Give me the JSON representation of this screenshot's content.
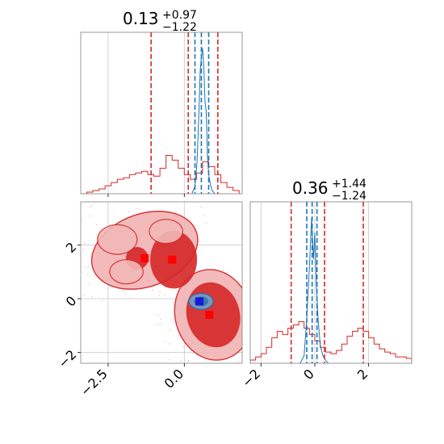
{
  "colors": {
    "red": "#d62728",
    "red_mid": "#e77778",
    "red_light": "#f2b7b7",
    "blue": "#1f77b4",
    "blue_light": "#6aa7d0",
    "marker_red": "#ff0000",
    "marker_blue": "#1818d6",
    "grid": "#c8c8c8"
  },
  "chart_data": [
    {
      "type": "line",
      "panel": "top-left",
      "title_main": "0.13",
      "title_sup": "+0.97",
      "title_sub": "−1.22",
      "xlim": [
        -3.4,
        1.9
      ],
      "grid": true,
      "series": [
        {
          "color": "#d62728",
          "bins": [
            -3.4,
            -3.2,
            -3.0,
            -2.8,
            -2.6,
            -2.4,
            -2.2,
            -2.0,
            -1.8,
            -1.6,
            -1.4,
            -1.2,
            -1.0,
            -0.8,
            -0.6,
            -0.4,
            -0.2,
            0.0,
            0.2,
            0.4,
            0.6,
            0.8,
            1.0,
            1.2,
            1.4,
            1.6,
            1.8
          ],
          "heights": [
            0.0,
            0.01,
            0.02,
            0.03,
            0.05,
            0.07,
            0.09,
            0.1,
            0.12,
            0.13,
            0.14,
            0.12,
            0.11,
            0.16,
            0.24,
            0.21,
            0.16,
            0.12,
            0.09,
            0.13,
            0.2,
            0.17,
            0.12,
            0.07,
            0.04,
            0.02
          ]
        },
        {
          "color": "#1f77b4",
          "x": [
            0.25,
            0.35,
            0.42,
            0.48,
            0.52,
            0.56,
            0.6,
            0.64,
            0.68,
            0.72,
            0.76,
            0.8,
            0.86,
            0.92,
            1.0
          ],
          "y": [
            0.0,
            0.05,
            0.22,
            0.55,
            0.82,
            0.92,
            0.98,
            0.85,
            0.62,
            0.55,
            0.25,
            0.13,
            0.06,
            0.02,
            0.0
          ]
        }
      ],
      "vlines": [
        {
          "x": -1.09,
          "color": "#d62728"
        },
        {
          "x": 0.13,
          "color": "#d62728"
        },
        {
          "x": 1.1,
          "color": "#d62728"
        },
        {
          "x": 0.35,
          "color": "#1f77b4"
        },
        {
          "x": 0.56,
          "color": "#1f77b4"
        },
        {
          "x": 0.8,
          "color": "#1f77b4"
        }
      ]
    },
    {
      "type": "heatmap",
      "panel": "bottom-left",
      "xlim": [
        -3.4,
        1.9
      ],
      "ylim": [
        -2.4,
        3.6
      ],
      "xticks": [
        -2.5,
        0.0
      ],
      "xticklabels": [
        "−2.5",
        "0.0"
      ],
      "yticks": [
        -2,
        0,
        2
      ],
      "yticklabels": [
        "−2",
        "0",
        "2"
      ],
      "grid": true,
      "red_contours": [
        {
          "level": "outer",
          "cx": -1.3,
          "cy": 1.8,
          "rx": 1.8,
          "ry": 1.35,
          "rot": -20
        },
        {
          "level": "outer",
          "cx": 0.95,
          "cy": -0.6,
          "rx": 1.25,
          "ry": 1.7,
          "rot": -15
        },
        {
          "level": "middle",
          "cx": -0.35,
          "cy": 1.45,
          "rx": 0.75,
          "ry": 1.05,
          "rot": 0
        },
        {
          "level": "middle",
          "cx": 0.95,
          "cy": -0.6,
          "rx": 0.85,
          "ry": 1.2,
          "rot": -15
        },
        {
          "level": "middle",
          "cx": -1.55,
          "cy": 1.5,
          "rx": 0.35,
          "ry": 0.4,
          "rot": 0
        }
      ],
      "blue_contour": {
        "cx": 0.55,
        "cy": -0.1,
        "rx": 0.4,
        "ry": 0.3
      },
      "markers": [
        {
          "x": -1.3,
          "y": 1.5,
          "color": "#ff0000"
        },
        {
          "x": -0.4,
          "y": 1.45,
          "color": "#ff0000"
        },
        {
          "x": 0.82,
          "y": -0.6,
          "color": "#ff0000"
        },
        {
          "x": 0.5,
          "y": -0.1,
          "color": "#1818d6"
        }
      ]
    },
    {
      "type": "line",
      "panel": "bottom-right",
      "title_main": "0.36",
      "title_sup": "+1.44",
      "title_sub": "−1.24",
      "xlim": [
        -2.4,
        3.6
      ],
      "xticks": [
        -2,
        0,
        2
      ],
      "xticklabels": [
        "−2",
        "0",
        "2"
      ],
      "grid": true,
      "series": [
        {
          "color": "#d62728",
          "bins": [
            -2.4,
            -2.2,
            -2.0,
            -1.8,
            -1.6,
            -1.4,
            -1.2,
            -1.0,
            -0.8,
            -0.6,
            -0.4,
            -0.2,
            0.0,
            0.2,
            0.4,
            0.6,
            0.8,
            1.0,
            1.2,
            1.4,
            1.6,
            1.8,
            2.0,
            2.2,
            2.4,
            2.6,
            2.8,
            3.0,
            3.2,
            3.4,
            3.6
          ],
          "heights": [
            0.02,
            0.04,
            0.06,
            0.1,
            0.16,
            0.2,
            0.18,
            0.22,
            0.24,
            0.26,
            0.22,
            0.18,
            0.14,
            0.1,
            0.07,
            0.06,
            0.08,
            0.12,
            0.17,
            0.2,
            0.22,
            0.2,
            0.16,
            0.12,
            0.09,
            0.07,
            0.06,
            0.04,
            0.04,
            0.03
          ]
        },
        {
          "color": "#1f77b4",
          "x": [
            -0.55,
            -0.4,
            -0.3,
            -0.2,
            -0.12,
            -0.05,
            0.0,
            0.05,
            0.12,
            0.2,
            0.3,
            0.4,
            0.5
          ],
          "y": [
            0.0,
            0.05,
            0.3,
            0.65,
            0.98,
            0.7,
            0.88,
            0.55,
            0.3,
            0.12,
            0.05,
            0.02,
            0.0
          ]
        }
      ],
      "vlines": [
        {
          "x": -0.88,
          "color": "#d62728"
        },
        {
          "x": 0.36,
          "color": "#d62728"
        },
        {
          "x": 1.8,
          "color": "#d62728"
        },
        {
          "x": -0.3,
          "color": "#1f77b4"
        },
        {
          "x": -0.1,
          "color": "#1f77b4"
        },
        {
          "x": 0.08,
          "color": "#1f77b4"
        }
      ]
    }
  ]
}
